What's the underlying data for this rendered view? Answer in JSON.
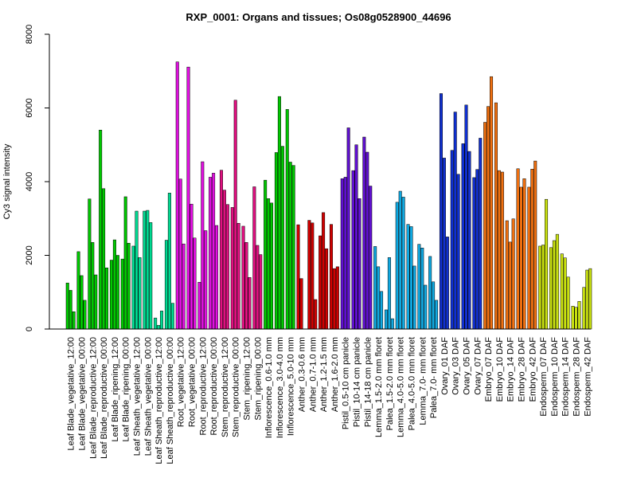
{
  "chart_data": {
    "type": "bar",
    "title": "RXP_0001: Organs and tissues; Os08g0528900_44696",
    "ylabel": "Cy3 signal intensity",
    "xlabel": "",
    "ylim": [
      0,
      8000
    ],
    "yticks": [
      0,
      2000,
      4000,
      6000,
      8000
    ],
    "grid": false,
    "legend": "none",
    "groups": [
      {
        "label": "Leaf Blade_vegetative_12:00",
        "color": "#00C800",
        "values": [
          1250,
          1050,
          470
        ]
      },
      {
        "label": "Leaf Blade_vegetative_00:00",
        "color": "#00C800",
        "values": [
          2100,
          1450,
          780
        ]
      },
      {
        "label": "Leaf Blade_reproductive_12:00",
        "color": "#00C800",
        "values": [
          3530,
          2350,
          1470
        ]
      },
      {
        "label": "Leaf Blade_reproductive_00:00",
        "color": "#00C800",
        "values": [
          5400,
          3810,
          1660
        ]
      },
      {
        "label": "Leaf Blade_ripening_12:00",
        "color": "#00C800",
        "values": [
          1870,
          2420,
          2000
        ]
      },
      {
        "label": "Leaf Blade_ripening_00:00",
        "color": "#00C800",
        "values": [
          1900,
          3590,
          2330
        ]
      },
      {
        "label": "Leaf Sheath_vegetative_12:00",
        "color": "#00D890",
        "values": [
          2250,
          3200,
          1940
        ]
      },
      {
        "label": "Leaf Sheath_vegetative_00:00",
        "color": "#00D890",
        "values": [
          3200,
          3220,
          2890
        ]
      },
      {
        "label": "Leaf Sheath_reproductive_12:00",
        "color": "#00D890",
        "values": [
          300,
          100,
          490
        ]
      },
      {
        "label": "Leaf Sheath_reproductive_00:00",
        "color": "#00D890",
        "values": [
          2410,
          3690,
          700
        ]
      },
      {
        "label": "Root_vegetative_12:00",
        "color": "#E010E0",
        "values": [
          7250,
          4070,
          2310
        ]
      },
      {
        "label": "Root_vegetative_00:00",
        "color": "#E010E0",
        "values": [
          7110,
          3390,
          2470
        ]
      },
      {
        "label": "Root_reproductive_12:00",
        "color": "#E010E0",
        "values": [
          1270,
          4540,
          2670
        ]
      },
      {
        "label": "Root_reproductive_00:00",
        "color": "#E010E0",
        "values": [
          4120,
          4230,
          2810
        ]
      },
      {
        "label": "Stem_reproductive_12:00",
        "color": "#E01080",
        "values": [
          4310,
          3770,
          3380
        ]
      },
      {
        "label": "Stem_reproductive_00:00",
        "color": "#E01080",
        "values": [
          3300,
          6210,
          2870
        ]
      },
      {
        "label": "Stem_ripening_12:00",
        "color": "#E01080",
        "values": [
          2790,
          2350,
          1400
        ]
      },
      {
        "label": "Stem_ripening_00:00",
        "color": "#E01080",
        "values": [
          3860,
          2270,
          2020
        ]
      },
      {
        "label": "Inflorescence_0.6-1.0 mm",
        "color": "#00C800",
        "values": [
          4040,
          3540,
          3420
        ]
      },
      {
        "label": "Inflorescence_3.0-4.0 mm",
        "color": "#00C800",
        "values": [
          4790,
          6310,
          4960
        ]
      },
      {
        "label": "Inflorescence_5.0-10 mm",
        "color": "#00C800",
        "values": [
          5960,
          4530,
          4440
        ]
      },
      {
        "label": "Anther_0.3-0.6 mm",
        "color": "#D00000",
        "values": [
          2830,
          1370,
          0
        ]
      },
      {
        "label": "Anther_0.7-1.0 mm",
        "color": "#D00000",
        "values": [
          2950,
          2880,
          800
        ]
      },
      {
        "label": "Anther_1.2-1.5 mm",
        "color": "#D00000",
        "values": [
          2530,
          3160,
          2180
        ]
      },
      {
        "label": "Anther_1.6-2.0 mm",
        "color": "#D00000",
        "values": [
          2840,
          1640,
          1690
        ]
      },
      {
        "label": "Pistil_0.5-10 cm panicle",
        "color": "#6010D0",
        "values": [
          4080,
          4120,
          5460
        ]
      },
      {
        "label": "Pistil_10-14 cm panicle",
        "color": "#6010D0",
        "values": [
          4300,
          5000,
          3540
        ]
      },
      {
        "label": "Pistil_14-18 cm panicle",
        "color": "#6010D0",
        "values": [
          5210,
          4800,
          3880
        ]
      },
      {
        "label": "Lemma_1.5-2.0 mm floret",
        "color": "#10A8E0",
        "values": [
          2240,
          1690,
          1020
        ]
      },
      {
        "label": "Palea_1.5-2.0 mm floret",
        "color": "#10A8E0",
        "values": [
          520,
          1940,
          280
        ]
      },
      {
        "label": "Lemma_4.0-5.0 mm floret",
        "color": "#10A8E0",
        "values": [
          3440,
          3740,
          3580
        ]
      },
      {
        "label": "Palea_4.0-5.0 mm floret",
        "color": "#10A8E0",
        "values": [
          2840,
          2780,
          1710
        ]
      },
      {
        "label": "Lemma_7.0- mm floret",
        "color": "#10A8E0",
        "values": [
          2300,
          2200,
          1190
        ]
      },
      {
        "label": "Palea_7.0- mm floret",
        "color": "#10A8E0",
        "values": [
          1970,
          1280,
          780
        ]
      },
      {
        "label": "Ovary_01 DAF",
        "color": "#1030D0",
        "values": [
          6390,
          4640,
          2500
        ]
      },
      {
        "label": "Ovary_03 DAF",
        "color": "#1030D0",
        "values": [
          4850,
          5890,
          4200
        ]
      },
      {
        "label": "Ovary_05 DAF",
        "color": "#1030D0",
        "values": [
          5030,
          6080,
          4820
        ]
      },
      {
        "label": "Ovary_07 DAF",
        "color": "#1030D0",
        "values": [
          4110,
          4330,
          5180
        ]
      },
      {
        "label": "Embryo_07 DAF",
        "color": "#F07010",
        "values": [
          5610,
          6040,
          6850
        ]
      },
      {
        "label": "Embryo_10 DAF",
        "color": "#F07010",
        "values": [
          6140,
          4300,
          4260
        ]
      },
      {
        "label": "Embryo_14 DAF",
        "color": "#F07010",
        "values": [
          2940,
          2360,
          2990
        ]
      },
      {
        "label": "Embryo_28 DAF",
        "color": "#F07010",
        "values": [
          4350,
          3850,
          4080
        ]
      },
      {
        "label": "Embryo_42 DAF",
        "color": "#F07010",
        "values": [
          3850,
          4340,
          4560
        ]
      },
      {
        "label": "Endosperm_07 DAF",
        "color": "#C8E010",
        "values": [
          2250,
          2280,
          3520
        ]
      },
      {
        "label": "Endosperm_10 DAF",
        "color": "#C8E010",
        "values": [
          2210,
          2400,
          2570
        ]
      },
      {
        "label": "Endosperm_14 DAF",
        "color": "#C8E010",
        "values": [
          2040,
          1930,
          1410
        ]
      },
      {
        "label": "Endosperm_28 DAF",
        "color": "#C8E010",
        "values": [
          620,
          590,
          750
        ]
      },
      {
        "label": "Endosperm_42 DAF",
        "color": "#C8E010",
        "values": [
          1130,
          1600,
          1640
        ]
      }
    ]
  }
}
